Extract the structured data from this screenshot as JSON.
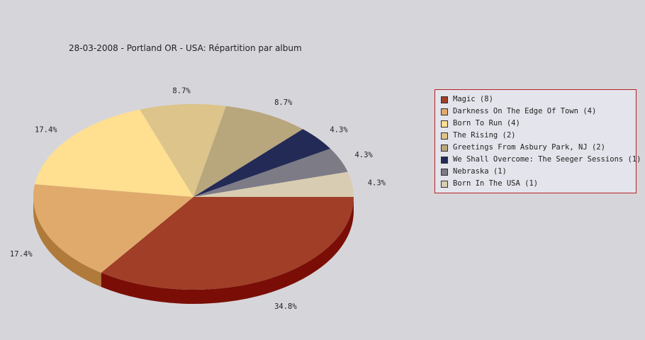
{
  "chart_data": {
    "type": "pie",
    "title": "28-03-2008 - Portland OR - USA:  Répartition par album",
    "categories": [
      "Magic",
      "Darkness On The Edge Of Town",
      "Born To Run",
      "The Rising",
      "Greetings From Asbury Park, NJ",
      "We Shall Overcome: The Seeger Sessions",
      "Nebraska",
      "Born In The USA"
    ],
    "values": [
      8,
      4,
      4,
      2,
      2,
      1,
      1,
      1
    ],
    "percent_labels": [
      "34.8%",
      "17.4%",
      "17.4%",
      "8.7%",
      "8.7%",
      "4.3%",
      "4.3%",
      "4.3%"
    ],
    "legend_labels": [
      "Magic (8)",
      "Darkness On The Edge Of Town (4)",
      "Born To Run (4)",
      "The Rising (2)",
      "Greetings From Asbury Park, NJ (2)",
      "We Shall Overcome: The Seeger Sessions (1)",
      "Nebraska (1)",
      "Born In The USA (1)"
    ],
    "colors": [
      "#a03e28",
      "#e0aa6c",
      "#ffdf90",
      "#dcc48a",
      "#b8a67c",
      "#232a56",
      "#7c7b86",
      "#d8cdb2"
    ],
    "side_colors": [
      "#7a0e06",
      "#b07a3a"
    ],
    "legend_position": "right",
    "background": "#d6d5da",
    "legend_background": "#e4e4ec",
    "legend_border": "#b22222"
  }
}
